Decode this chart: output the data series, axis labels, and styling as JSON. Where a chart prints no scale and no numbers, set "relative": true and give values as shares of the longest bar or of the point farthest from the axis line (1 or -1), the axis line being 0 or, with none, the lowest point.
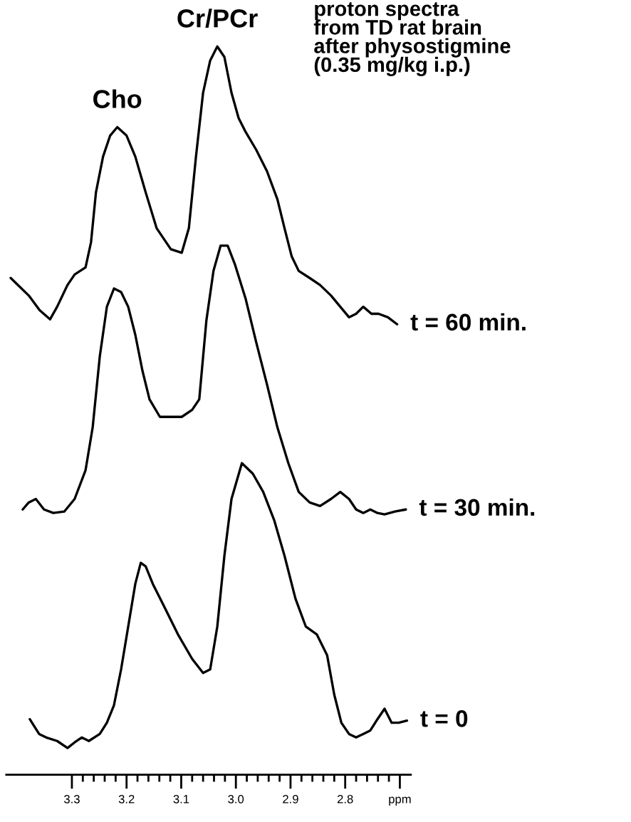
{
  "chart_data": {
    "type": "line",
    "relative": true,
    "title": "proton spectra\nfrom TD rat brain\nafter physostigmine\n(0.35 mg/kg i.p.)",
    "xlim": [
      3.42,
      2.68
    ],
    "xticks": [
      3.3,
      3.2,
      3.1,
      {
        "value": 3.0,
        "label": "3.0"
      },
      2.9,
      2.8,
      {
        "value": 2.7,
        "label": "ppm"
      }
    ],
    "annotations": [
      {
        "text": "Cho",
        "x": 3.217,
        "y": 0.885
      },
      {
        "text": "Cr/PCr",
        "x": 3.034,
        "y": 1.0
      }
    ],
    "series": [
      {
        "name": "t = 60 min.",
        "color": "#000000",
        "x": [
          3.412,
          3.379,
          3.359,
          3.34,
          3.327,
          3.308,
          3.295,
          3.275,
          3.265,
          3.256,
          3.243,
          3.23,
          3.217,
          3.2,
          3.184,
          3.165,
          3.145,
          3.119,
          3.099,
          3.086,
          3.073,
          3.06,
          3.047,
          3.034,
          3.021,
          3.008,
          2.995,
          2.982,
          2.963,
          2.943,
          2.924,
          2.911,
          2.898,
          2.885,
          2.865,
          2.846,
          2.826,
          2.809,
          2.793,
          2.78,
          2.767,
          2.752,
          2.739,
          2.722,
          2.705
        ],
        "values": [
          0.67,
          0.645,
          0.624,
          0.611,
          0.629,
          0.66,
          0.675,
          0.685,
          0.721,
          0.792,
          0.843,
          0.873,
          0.885,
          0.873,
          0.843,
          0.792,
          0.741,
          0.711,
          0.706,
          0.741,
          0.843,
          0.934,
          0.98,
          1.0,
          0.985,
          0.934,
          0.898,
          0.878,
          0.853,
          0.822,
          0.782,
          0.741,
          0.701,
          0.68,
          0.67,
          0.66,
          0.645,
          0.629,
          0.614,
          0.619,
          0.629,
          0.619,
          0.619,
          0.614,
          0.604
        ]
      },
      {
        "name": "t = 30 min.",
        "color": "#000000",
        "x": [
          3.39,
          3.379,
          3.366,
          3.351,
          3.334,
          3.314,
          3.295,
          3.275,
          3.262,
          3.249,
          3.236,
          3.223,
          3.21,
          3.197,
          3.184,
          3.171,
          3.158,
          3.139,
          3.119,
          3.099,
          3.08,
          3.067,
          3.054,
          3.041,
          3.028,
          3.015,
          3.002,
          2.982,
          2.963,
          2.943,
          2.924,
          2.904,
          2.885,
          2.865,
          2.846,
          2.826,
          2.809,
          2.793,
          2.78,
          2.767,
          2.754,
          2.741,
          2.728,
          2.709,
          2.689
        ],
        "values": [
          0.34,
          0.35,
          0.355,
          0.34,
          0.335,
          0.337,
          0.355,
          0.396,
          0.457,
          0.558,
          0.629,
          0.655,
          0.65,
          0.629,
          0.589,
          0.538,
          0.497,
          0.472,
          0.472,
          0.472,
          0.482,
          0.497,
          0.609,
          0.68,
          0.716,
          0.716,
          0.69,
          0.64,
          0.579,
          0.518,
          0.457,
          0.406,
          0.365,
          0.35,
          0.345,
          0.355,
          0.365,
          0.355,
          0.34,
          0.335,
          0.34,
          0.335,
          0.333,
          0.337,
          0.34
        ]
      },
      {
        "name": "t = 0",
        "color": "#000000",
        "x": [
          3.377,
          3.36,
          3.347,
          3.327,
          3.308,
          3.295,
          3.282,
          3.269,
          3.249,
          3.236,
          3.223,
          3.21,
          3.197,
          3.184,
          3.174,
          3.165,
          3.152,
          3.132,
          3.106,
          3.08,
          3.06,
          3.047,
          3.034,
          3.021,
          3.008,
          2.989,
          2.969,
          2.95,
          2.93,
          2.911,
          2.891,
          2.872,
          2.852,
          2.833,
          2.82,
          2.807,
          2.793,
          2.78,
          2.767,
          2.754,
          2.741,
          2.728,
          2.715,
          2.702,
          2.687
        ],
        "values": [
          0.041,
          0.02,
          0.015,
          0.01,
          0.0,
          0.008,
          0.015,
          0.01,
          0.02,
          0.036,
          0.061,
          0.112,
          0.173,
          0.234,
          0.264,
          0.259,
          0.234,
          0.203,
          0.162,
          0.127,
          0.107,
          0.112,
          0.173,
          0.274,
          0.355,
          0.406,
          0.391,
          0.365,
          0.325,
          0.274,
          0.213,
          0.173,
          0.162,
          0.132,
          0.076,
          0.036,
          0.02,
          0.015,
          0.02,
          0.025,
          0.041,
          0.056,
          0.036,
          0.036,
          0.039
        ]
      }
    ]
  }
}
